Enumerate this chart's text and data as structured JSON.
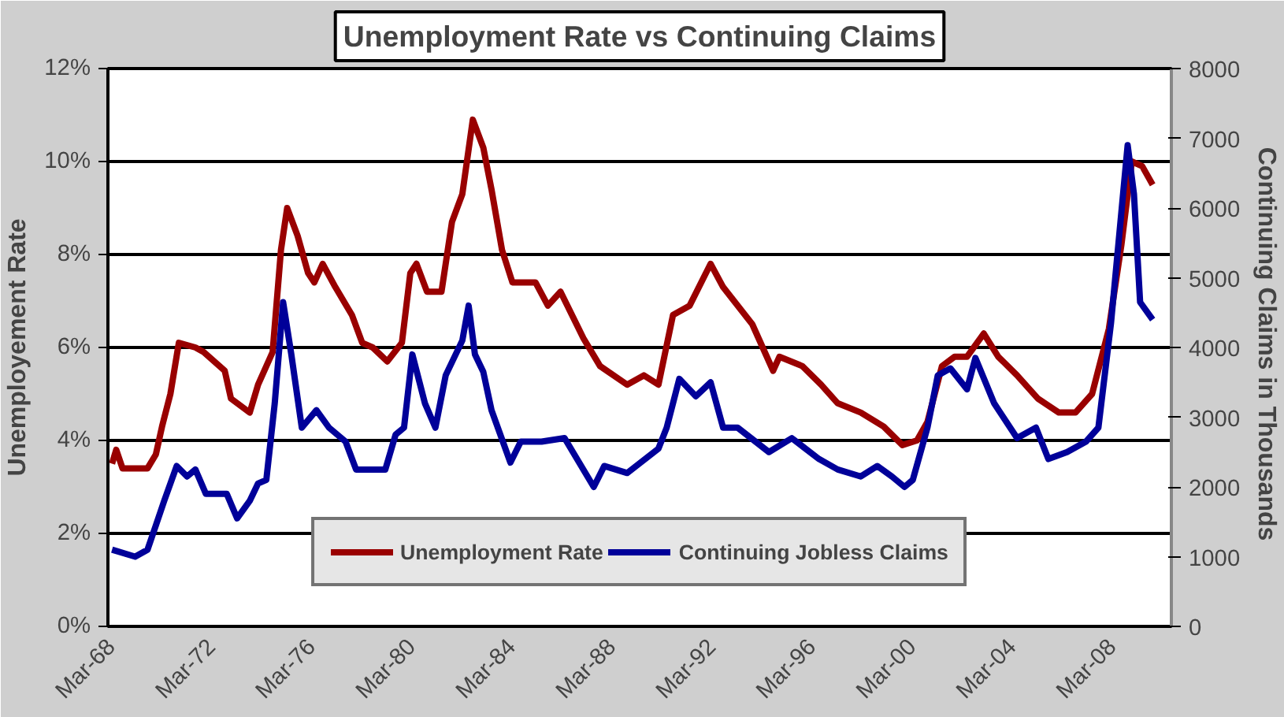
{
  "chart_data": {
    "type": "line",
    "title": "Unemployment Rate vs Continuing Claims",
    "ylabel": "Unemployement Rate",
    "y2label": "Continuing  Claims in Thousands",
    "xlim": [
      "1968-01",
      "2010-07"
    ],
    "xticks": [
      {
        "value": "1968-03",
        "label": "Mar-68"
      },
      {
        "value": "1972-03",
        "label": "Mar-72"
      },
      {
        "value": "1976-03",
        "label": "Mar-76"
      },
      {
        "value": "1980-03",
        "label": "Mar-80"
      },
      {
        "value": "1984-03",
        "label": "Mar-84"
      },
      {
        "value": "1988-03",
        "label": "Mar-88"
      },
      {
        "value": "1992-03",
        "label": "Mar-92"
      },
      {
        "value": "1996-03",
        "label": "Mar-96"
      },
      {
        "value": "2000-03",
        "label": "Mar-00"
      },
      {
        "value": "2004-03",
        "label": "Mar-04"
      },
      {
        "value": "2008-03",
        "label": "Mar-08"
      }
    ],
    "ylim": [
      0,
      12
    ],
    "yticks": [
      {
        "value": 0,
        "label": "0%"
      },
      {
        "value": 2,
        "label": "2%"
      },
      {
        "value": 4,
        "label": "4%"
      },
      {
        "value": 6,
        "label": "6%"
      },
      {
        "value": 8,
        "label": "8%"
      },
      {
        "value": 10,
        "label": "10%"
      },
      {
        "value": 12,
        "label": "12%"
      }
    ],
    "y2lim": [
      0,
      8000
    ],
    "y2ticks": [
      0,
      1000,
      2000,
      3000,
      4000,
      5000,
      6000,
      7000,
      8000
    ],
    "grid": "y",
    "legend": "bottom",
    "marker": "none",
    "line_style": "solid",
    "series": [
      {
        "name": "Unemployment Rate",
        "color": "#990000",
        "x": [
          "1968-03",
          "1968-05",
          "1968-08",
          "1969-08",
          "1969-12",
          "1970-03",
          "1970-07",
          "1970-11",
          "1971-07",
          "1971-11",
          "1972-09",
          "1972-12",
          "1973-09",
          "1974-01",
          "1974-08",
          "1974-12",
          "1975-03",
          "1975-08",
          "1976-01",
          "1976-04",
          "1976-08",
          "1977-02",
          "1977-10",
          "1978-03",
          "1978-08",
          "1979-03",
          "1979-10",
          "1980-02",
          "1980-05",
          "1980-10",
          "1981-05",
          "1981-10",
          "1982-03",
          "1982-08",
          "1983-01",
          "1983-05",
          "1983-10",
          "1984-03",
          "1985-02",
          "1985-08",
          "1986-02",
          "1987-01",
          "1987-09",
          "1988-10",
          "1989-06",
          "1990-01",
          "1990-08",
          "1991-04",
          "1992-02",
          "1992-08",
          "1993-10",
          "1994-08",
          "1994-11",
          "1995-10",
          "1996-07",
          "1997-03",
          "1998-02",
          "1999-01",
          "1999-10",
          "2000-05",
          "2000-10",
          "2001-05",
          "2001-11",
          "2002-05",
          "2003-01",
          "2003-08",
          "2004-05",
          "2005-03",
          "2006-01",
          "2006-09",
          "2007-05",
          "2008-01",
          "2008-07",
          "2008-12",
          "2009-05",
          "2009-10"
        ],
        "values": [
          3.5,
          3.8,
          3.4,
          3.4,
          3.7,
          4.3,
          5.0,
          6.1,
          6.0,
          5.9,
          5.5,
          4.9,
          4.6,
          5.2,
          5.9,
          8.1,
          9.0,
          8.4,
          7.6,
          7.4,
          7.8,
          7.3,
          6.7,
          6.1,
          6.0,
          5.7,
          6.1,
          7.6,
          7.8,
          7.2,
          7.2,
          8.7,
          9.3,
          10.9,
          10.3,
          9.4,
          8.1,
          7.4,
          7.4,
          6.9,
          7.2,
          6.2,
          5.6,
          5.2,
          5.4,
          5.2,
          6.7,
          6.9,
          7.8,
          7.3,
          6.5,
          5.5,
          5.8,
          5.6,
          5.2,
          4.8,
          4.6,
          4.3,
          3.9,
          4.0,
          4.4,
          5.6,
          5.8,
          5.8,
          6.3,
          5.8,
          5.4,
          4.9,
          4.6,
          4.6,
          5.0,
          6.4,
          8.2,
          10.0,
          9.9,
          9.5
        ]
      },
      {
        "name": "Continuing Jobless Claims",
        "color": "#000099",
        "axis": "y2",
        "x": [
          "1968-03",
          "1969-02",
          "1969-08",
          "1969-12",
          "1970-04",
          "1970-10",
          "1971-03",
          "1971-07",
          "1971-12",
          "1972-10",
          "1973-03",
          "1973-09",
          "1974-01",
          "1974-05",
          "1974-09",
          "1975-01",
          "1975-05",
          "1975-10",
          "1976-05",
          "1976-11",
          "1977-07",
          "1977-12",
          "1979-02",
          "1979-07",
          "1979-11",
          "1980-03",
          "1980-09",
          "1981-02",
          "1981-07",
          "1982-03",
          "1982-06",
          "1982-09",
          "1983-01",
          "1983-05",
          "1984-02",
          "1984-07",
          "1985-05",
          "1986-04",
          "1987-06",
          "1987-11",
          "1988-10",
          "1990-01",
          "1990-05",
          "1990-11",
          "1991-07",
          "1992-02",
          "1992-08",
          "1993-03",
          "1994-06",
          "1995-05",
          "1996-06",
          "1997-03",
          "1998-02",
          "1998-10",
          "1999-05",
          "1999-11",
          "2000-03",
          "2000-10",
          "2001-03",
          "2001-09",
          "2002-05",
          "2002-09",
          "2003-06",
          "2004-05",
          "2005-02",
          "2005-08",
          "2006-05",
          "2007-02",
          "2007-08",
          "2008-02",
          "2008-10",
          "2009-01",
          "2009-04",
          "2009-10"
        ],
        "values": [
          1100,
          1000,
          1100,
          1450,
          1800,
          2300,
          2150,
          2250,
          1900,
          1900,
          1550,
          1800,
          2050,
          2100,
          3200,
          4650,
          3900,
          2850,
          3100,
          2850,
          2650,
          2250,
          2250,
          2750,
          2850,
          3900,
          3200,
          2850,
          3600,
          4100,
          4600,
          3900,
          3650,
          3100,
          2350,
          2650,
          2650,
          2700,
          2000,
          2300,
          2200,
          2550,
          2850,
          3550,
          3300,
          3500,
          2850,
          2850,
          2500,
          2700,
          2400,
          2250,
          2150,
          2300,
          2150,
          2000,
          2100,
          2850,
          3600,
          3700,
          3400,
          3850,
          3200,
          2700,
          2850,
          2400,
          2500,
          2650,
          2850,
          4350,
          6900,
          6200,
          4650,
          4400
        ]
      }
    ]
  }
}
